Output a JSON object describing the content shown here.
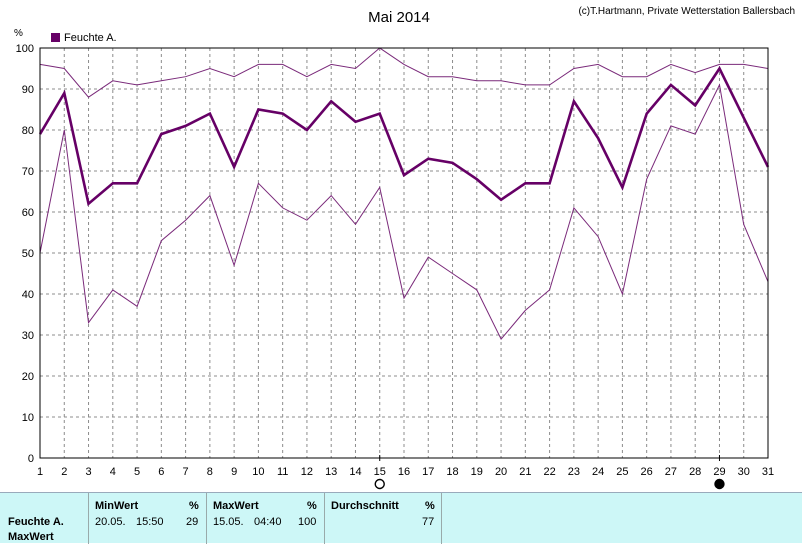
{
  "header": {
    "title": "Mai 2014",
    "copyright": "(c)T.Hartmann, Private Wetterstation Ballersbach"
  },
  "chart_data": {
    "type": "line",
    "title": "Mai 2014",
    "unit": "%",
    "xlabel": "",
    "ylabel": "%",
    "ylim": [
      0,
      100
    ],
    "x": [
      1,
      2,
      3,
      4,
      5,
      6,
      7,
      8,
      9,
      10,
      11,
      12,
      13,
      14,
      15,
      16,
      17,
      18,
      19,
      20,
      21,
      22,
      23,
      24,
      25,
      26,
      27,
      28,
      29,
      30,
      31
    ],
    "x_ticks": [
      "1",
      "2",
      "3",
      "4",
      "5",
      "6",
      "7",
      "8",
      "9",
      "10",
      "11",
      "12",
      "13",
      "14",
      "15",
      "16",
      "17",
      "18",
      "19",
      "20",
      "21",
      "22",
      "23",
      "24",
      "25",
      "26",
      "27",
      "28",
      "29",
      "30",
      "31"
    ],
    "y_ticks": [
      "0",
      "10",
      "20",
      "30",
      "40",
      "50",
      "60",
      "70",
      "80",
      "90",
      "100"
    ],
    "grid": true,
    "legend": {
      "position": "top-left",
      "entries": [
        "Feuchte A."
      ]
    },
    "series": [
      {
        "name": "Feuchte A.",
        "role": "mean",
        "color": "#660066",
        "values": [
          79,
          89,
          62,
          67,
          67,
          79,
          81,
          84,
          71,
          85,
          84,
          80,
          87,
          82,
          84,
          69,
          73,
          72,
          68,
          63,
          67,
          67,
          87,
          78,
          66,
          84,
          91,
          86,
          95,
          83,
          71
        ]
      },
      {
        "role": "max",
        "color": "#7a2a7a",
        "values": [
          96,
          95,
          88,
          92,
          91,
          92,
          93,
          95,
          93,
          96,
          96,
          93,
          96,
          95,
          100,
          96,
          93,
          93,
          92,
          92,
          91,
          91,
          95,
          96,
          93,
          93,
          96,
          94,
          96,
          96,
          95
        ]
      },
      {
        "role": "min",
        "color": "#7a2a7a",
        "values": [
          50,
          80,
          33,
          41,
          37,
          53,
          58,
          64,
          47,
          67,
          61,
          58,
          64,
          57,
          66,
          39,
          49,
          45,
          41,
          29,
          36,
          41,
          61,
          54,
          40,
          68,
          81,
          79,
          91,
          57,
          43
        ]
      }
    ],
    "markers": [
      {
        "day": 15,
        "type": "open-circle"
      },
      {
        "day": 29,
        "type": "filled-circle"
      }
    ]
  },
  "stats": {
    "row_label": "Feuchte A.",
    "row_label2": "MaxWert",
    "columns": [
      {
        "label": "MinWert",
        "unit": "%",
        "date": "20.05.",
        "time": "15:50",
        "value": "29"
      },
      {
        "label": "MaxWert",
        "unit": "%",
        "date": "15.05.",
        "time": "04:40",
        "value": "100"
      },
      {
        "label": "Durchschnitt",
        "unit": "%",
        "value": "77"
      }
    ]
  }
}
